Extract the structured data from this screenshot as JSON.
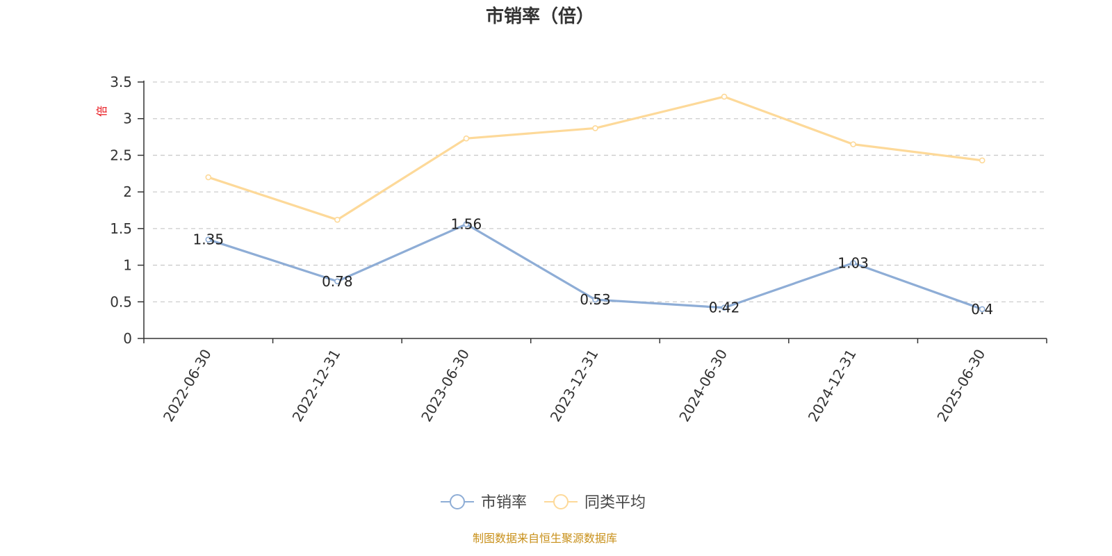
{
  "chart_data": {
    "type": "line",
    "title": "市销率（倍）",
    "ylabel": "倍",
    "xlabel": "",
    "categories": [
      "2022-06-30",
      "2022-12-31",
      "2023-06-30",
      "2023-12-31",
      "2024-06-30",
      "2024-12-31",
      "2025-06-30"
    ],
    "ylim": [
      0,
      3.5
    ],
    "yticks": [
      "0",
      "0.5",
      "1",
      "1.5",
      "2",
      "2.5",
      "3",
      "3.5"
    ],
    "grid": true,
    "legend_position": "bottom-center",
    "series": [
      {
        "name": "市销率",
        "color": "#8eadd6",
        "values": [
          1.35,
          0.78,
          1.56,
          0.53,
          0.42,
          1.03,
          0.4
        ],
        "labels": [
          "1.35",
          "0.78",
          "1.56",
          "0.53",
          "0.42",
          "1.03",
          "0.4"
        ],
        "show_labels": true
      },
      {
        "name": "同类平均",
        "color": "#fdd999",
        "values": [
          2.2,
          1.62,
          2.73,
          2.87,
          3.3,
          2.65,
          2.43
        ],
        "show_labels": false
      }
    ]
  },
  "footer": {
    "source": "制图数据来自恒生聚源数据库"
  }
}
